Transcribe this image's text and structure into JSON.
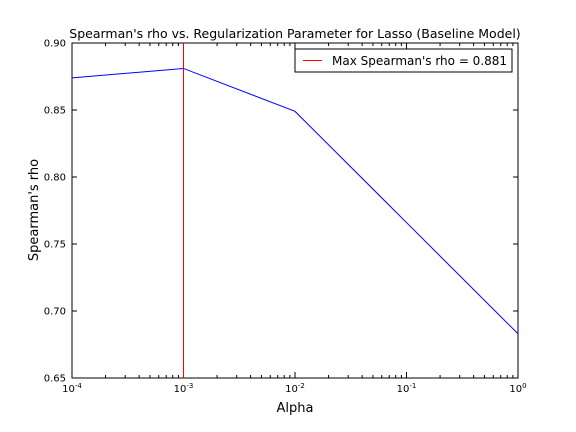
{
  "chart_data": {
    "type": "line",
    "title": "Spearman's rho vs. Regularization Parameter for Lasso (Baseline Model)",
    "xlabel": "Alpha",
    "ylabel": "Spearman's rho",
    "xscale": "log",
    "xlim": [
      0.0001,
      1
    ],
    "ylim": [
      0.65,
      0.9
    ],
    "x_ticks": [
      {
        "value": 0.0001,
        "base": "10",
        "exp": "-4"
      },
      {
        "value": 0.001,
        "base": "10",
        "exp": "-3"
      },
      {
        "value": 0.01,
        "base": "10",
        "exp": "-2"
      },
      {
        "value": 0.1,
        "base": "10",
        "exp": "-1"
      },
      {
        "value": 1,
        "base": "10",
        "exp": "0"
      }
    ],
    "y_ticks": [
      {
        "value": 0.65,
        "label": "0.65"
      },
      {
        "value": 0.7,
        "label": "0.70"
      },
      {
        "value": 0.75,
        "label": "0.75"
      },
      {
        "value": 0.8,
        "label": "0.80"
      },
      {
        "value": 0.85,
        "label": "0.85"
      },
      {
        "value": 0.9,
        "label": "0.90"
      }
    ],
    "series": [
      {
        "color": "#0000ff",
        "points": [
          {
            "x": 0.0001,
            "y": 0.874
          },
          {
            "x": 0.001,
            "y": 0.881
          },
          {
            "x": 0.01,
            "y": 0.849
          },
          {
            "x": 0.1,
            "y": 0.766
          },
          {
            "x": 1,
            "y": 0.683
          }
        ]
      }
    ],
    "vline": {
      "x": 0.001,
      "color": "#ff0000",
      "label": "Max Spearman's rho = 0.881"
    },
    "legend": {
      "position": "top-right"
    },
    "grid": false
  }
}
